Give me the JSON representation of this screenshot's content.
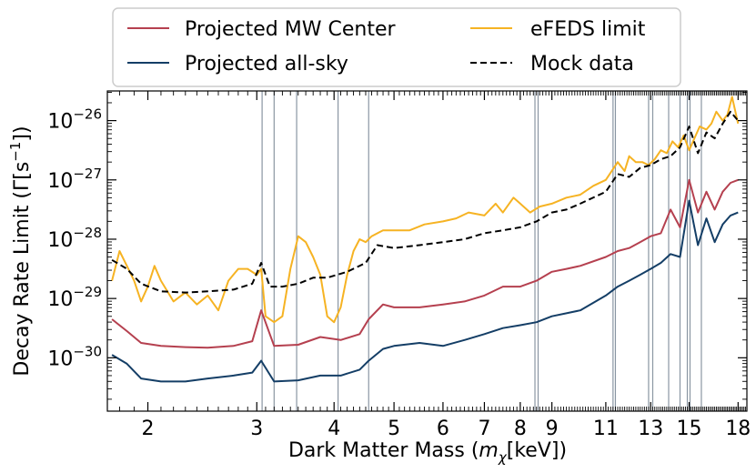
{
  "chart_data": {
    "type": "line",
    "title": "",
    "xlabel_text": "Dark Matter Mass (",
    "xlabel_symbol": "m",
    "xlabel_subscript": "χ",
    "xlabel_unit": "[keV])",
    "ylabel_text": "Decay Rate Limit (Γ[s",
    "ylabel_exponent": "−1",
    "ylabel_close": "])",
    "xscale": "log",
    "yscale": "log",
    "xlim": [
      1.72,
      18.6
    ],
    "ylim": [
      -30.9,
      -25.5
    ],
    "x_ticks": [
      2,
      3,
      4,
      5,
      6,
      7,
      8,
      9,
      11,
      13,
      15,
      18
    ],
    "x_tick_labels": [
      "2",
      "3",
      "4",
      "5",
      "6",
      "7",
      "8",
      "9",
      "11",
      "13",
      "15",
      "18"
    ],
    "y_ticks": [
      -30,
      -29,
      -28,
      -27,
      -26
    ],
    "y_tick_base": "10",
    "y_tick_exponents": [
      "−30",
      "−29",
      "−28",
      "−27",
      "−26"
    ],
    "legend_position": "top, outside plot",
    "vertical_lines_kev": [
      3.06,
      3.2,
      3.48,
      4.06,
      4.55,
      8.45,
      8.55,
      11.3,
      11.4,
      12.9,
      13.1,
      13.9,
      14.5,
      14.9,
      15.05,
      15.7
    ],
    "series": [
      {
        "name": "Projected MW Center",
        "color": "#b5404f",
        "dash": "",
        "x": [
          1.75,
          1.85,
          1.95,
          2.1,
          2.3,
          2.5,
          2.75,
          2.95,
          3.05,
          3.2,
          3.5,
          3.8,
          4.1,
          4.4,
          4.55,
          4.8,
          5.0,
          5.5,
          6.0,
          6.5,
          7.0,
          7.5,
          8.0,
          8.5,
          9.0,
          9.5,
          10.0,
          11.0,
          11.5,
          12.0,
          12.5,
          13.0,
          13.5,
          14.0,
          14.5,
          15.0,
          15.5,
          16.0,
          16.5,
          17.0,
          17.5,
          18.0
        ],
        "y": [
          -29.35,
          -29.55,
          -29.75,
          -29.8,
          -29.82,
          -29.83,
          -29.8,
          -29.72,
          -29.2,
          -29.8,
          -29.78,
          -29.65,
          -29.7,
          -29.6,
          -29.35,
          -29.1,
          -29.15,
          -29.15,
          -29.1,
          -29.05,
          -28.95,
          -28.8,
          -28.8,
          -28.7,
          -28.55,
          -28.5,
          -28.45,
          -28.3,
          -28.2,
          -28.15,
          -28.05,
          -27.95,
          -27.9,
          -27.5,
          -27.8,
          -27.0,
          -27.55,
          -27.2,
          -27.5,
          -27.2,
          -27.05,
          -27.0
        ]
      },
      {
        "name": "Projected all-sky",
        "color": "#143e66",
        "dash": "",
        "x": [
          1.75,
          1.85,
          1.95,
          2.1,
          2.3,
          2.5,
          2.75,
          2.95,
          3.05,
          3.2,
          3.5,
          3.8,
          4.1,
          4.4,
          4.55,
          4.8,
          5.0,
          5.5,
          6.0,
          6.5,
          7.0,
          7.5,
          8.0,
          8.5,
          9.0,
          9.5,
          10.0,
          11.0,
          11.5,
          12.0,
          12.5,
          13.0,
          13.5,
          14.0,
          14.5,
          15.0,
          15.5,
          16.0,
          16.5,
          17.0,
          17.5,
          18.0
        ],
        "y": [
          -29.95,
          -30.1,
          -30.35,
          -30.4,
          -30.4,
          -30.35,
          -30.3,
          -30.25,
          -30.05,
          -30.4,
          -30.38,
          -30.3,
          -30.3,
          -30.2,
          -30.05,
          -29.85,
          -29.8,
          -29.75,
          -29.8,
          -29.7,
          -29.6,
          -29.5,
          -29.45,
          -29.4,
          -29.3,
          -29.25,
          -29.2,
          -28.95,
          -28.8,
          -28.7,
          -28.6,
          -28.5,
          -28.4,
          -28.25,
          -28.3,
          -27.35,
          -28.1,
          -27.65,
          -28.05,
          -27.75,
          -27.6,
          -27.55
        ]
      },
      {
        "name": "eFEDS limit",
        "color": "#f6b323",
        "dash": "",
        "x": [
          1.75,
          1.8,
          1.85,
          1.9,
          1.95,
          2.0,
          2.05,
          2.1,
          2.2,
          2.3,
          2.4,
          2.5,
          2.6,
          2.7,
          2.8,
          2.9,
          3.0,
          3.05,
          3.1,
          3.2,
          3.3,
          3.4,
          3.5,
          3.6,
          3.7,
          3.8,
          3.9,
          4.0,
          4.1,
          4.2,
          4.3,
          4.4,
          4.5,
          4.6,
          4.8,
          5.0,
          5.3,
          5.6,
          6.0,
          6.3,
          6.6,
          7.0,
          7.3,
          7.5,
          7.8,
          8.0,
          8.3,
          8.6,
          9.0,
          9.5,
          10.0,
          10.5,
          11.0,
          11.5,
          11.8,
          12.0,
          12.3,
          12.6,
          12.9,
          13.2,
          13.5,
          13.8,
          14.1,
          14.4,
          14.7,
          15.0,
          15.3,
          15.6,
          16.0,
          16.3,
          16.6,
          17.0,
          17.3,
          17.6,
          18.0
        ],
        "y": [
          -28.7,
          -28.2,
          -28.45,
          -28.7,
          -29.05,
          -28.8,
          -28.45,
          -28.7,
          -29.05,
          -28.9,
          -29.1,
          -28.95,
          -29.2,
          -28.7,
          -28.5,
          -28.5,
          -28.6,
          -28.5,
          -29.3,
          -29.4,
          -29.3,
          -28.5,
          -27.95,
          -28.05,
          -28.3,
          -28.6,
          -29.3,
          -29.4,
          -29.15,
          -28.6,
          -28.2,
          -28.0,
          -28.05,
          -27.95,
          -27.85,
          -27.85,
          -27.85,
          -27.75,
          -27.7,
          -27.65,
          -27.55,
          -27.6,
          -27.4,
          -27.55,
          -27.3,
          -27.4,
          -27.55,
          -27.45,
          -27.4,
          -27.3,
          -27.25,
          -27.1,
          -27.0,
          -26.7,
          -26.85,
          -26.6,
          -26.7,
          -26.7,
          -26.75,
          -26.65,
          -26.5,
          -26.55,
          -26.35,
          -26.45,
          -26.25,
          -26.5,
          -26.3,
          -26.1,
          -26.15,
          -26.05,
          -25.85,
          -26.0,
          -25.9,
          -25.6,
          -26.05
        ]
      },
      {
        "name": "Mock data",
        "color": "#000000",
        "dash": "7,4",
        "x": [
          1.75,
          1.85,
          1.95,
          2.1,
          2.3,
          2.5,
          2.75,
          2.95,
          3.05,
          3.15,
          3.3,
          3.5,
          3.7,
          3.9,
          4.2,
          4.5,
          4.7,
          5.0,
          5.5,
          6.0,
          6.5,
          7.0,
          7.5,
          8.0,
          8.5,
          9.0,
          9.5,
          10.0,
          11.0,
          11.5,
          12.0,
          12.5,
          13.0,
          13.5,
          14.0,
          14.5,
          15.0,
          15.5,
          16.0,
          16.5,
          17.0,
          17.5,
          18.0
        ],
        "y": [
          -28.35,
          -28.5,
          -28.75,
          -28.88,
          -28.9,
          -28.88,
          -28.85,
          -28.75,
          -28.4,
          -28.8,
          -28.8,
          -28.75,
          -28.65,
          -28.65,
          -28.55,
          -28.4,
          -28.1,
          -28.15,
          -28.1,
          -28.05,
          -28.0,
          -27.9,
          -27.85,
          -27.8,
          -27.7,
          -27.55,
          -27.5,
          -27.4,
          -27.2,
          -26.9,
          -26.95,
          -26.8,
          -26.75,
          -26.65,
          -26.6,
          -26.45,
          -26.1,
          -26.55,
          -26.2,
          -26.3,
          -26.05,
          -25.85,
          -26.0
        ]
      }
    ]
  }
}
